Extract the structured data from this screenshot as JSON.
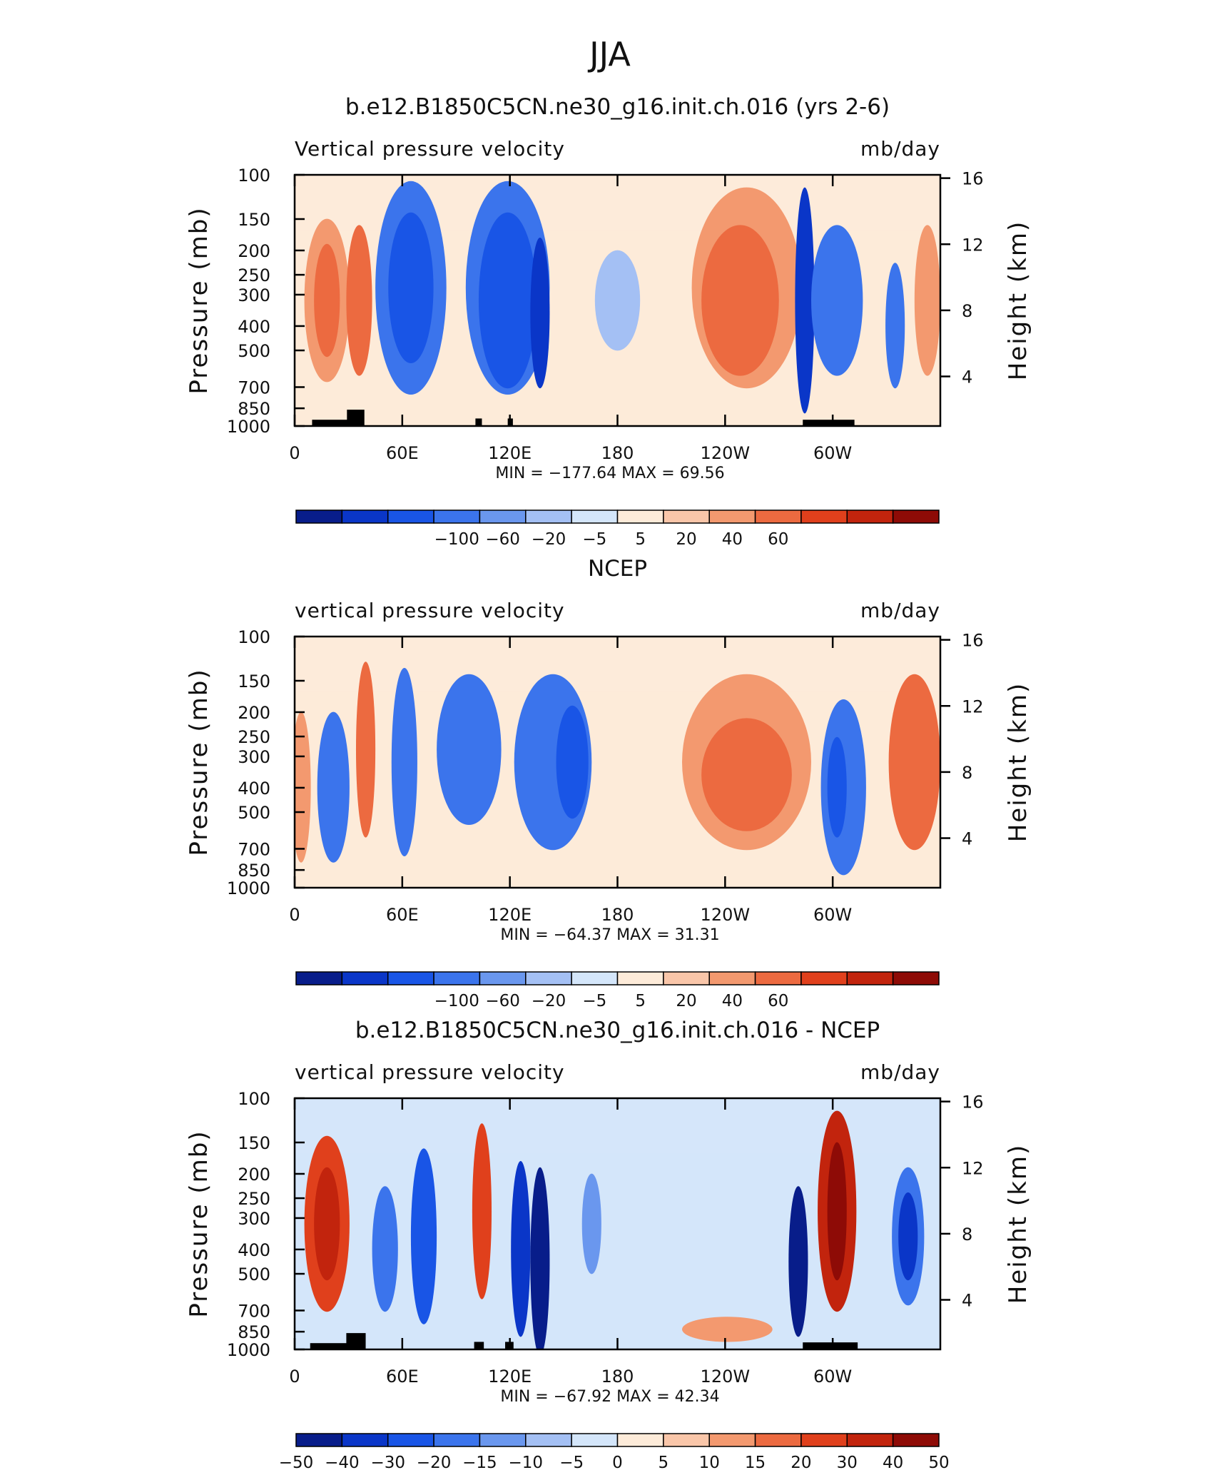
{
  "figure": {
    "title": "JJA"
  },
  "chart_data": [
    {
      "type": "heatmap",
      "title": "b.e12.B1850C5CN.ne30_g16.init.ch.016 (yrs 2-6)",
      "left_label": "Vertical pressure velocity",
      "right_label": "mb/day",
      "ylabel": "Pressure (mb)",
      "ylabel_right": "Height (km)",
      "x_ticks": [
        "0",
        "60E",
        "120E",
        "180",
        "120W",
        "60W"
      ],
      "y_ticks": [
        "100",
        "150",
        "200",
        "250",
        "300",
        "400",
        "500",
        "700",
        "850",
        "1000"
      ],
      "y_ticks_right": [
        "16",
        "12",
        "8",
        "4"
      ],
      "min_max": "MIN = −177.64   MAX =   69.56",
      "min": -177.64,
      "max": 69.56,
      "colorbar_ticks": [
        "−100",
        "−60",
        "−20",
        "−5",
        "5",
        "20",
        "40",
        "60"
      ]
    },
    {
      "type": "heatmap",
      "title": "NCEP",
      "left_label": "vertical pressure velocity",
      "right_label": "mb/day",
      "ylabel": "Pressure (mb)",
      "ylabel_right": "Height (km)",
      "x_ticks": [
        "0",
        "60E",
        "120E",
        "180",
        "120W",
        "60W"
      ],
      "y_ticks": [
        "100",
        "150",
        "200",
        "250",
        "300",
        "400",
        "500",
        "700",
        "850",
        "1000"
      ],
      "y_ticks_right": [
        "16",
        "12",
        "8",
        "4"
      ],
      "min_max": "MIN = −64.37   MAX =   31.31",
      "min": -64.37,
      "max": 31.31,
      "colorbar_ticks": [
        "−100",
        "−60",
        "−20",
        "−5",
        "5",
        "20",
        "40",
        "60"
      ]
    },
    {
      "type": "heatmap",
      "title": "b.e12.B1850C5CN.ne30_g16.init.ch.016 - NCEP",
      "left_label": "vertical pressure velocity",
      "right_label": "mb/day",
      "ylabel": "Pressure (mb)",
      "ylabel_right": "Height (km)",
      "x_ticks": [
        "0",
        "60E",
        "120E",
        "180",
        "120W",
        "60W"
      ],
      "y_ticks": [
        "100",
        "150",
        "200",
        "250",
        "300",
        "400",
        "500",
        "700",
        "850",
        "1000"
      ],
      "y_ticks_right": [
        "16",
        "12",
        "8",
        "4"
      ],
      "min_max": "MIN = −67.92   MAX =   42.34",
      "min": -67.92,
      "max": 42.34,
      "colorbar_ticks": [
        "−50",
        "−40",
        "−30",
        "−20",
        "−15",
        "−10",
        "−5",
        "0",
        "5",
        "10",
        "15",
        "20",
        "30",
        "40",
        "50"
      ]
    }
  ],
  "colorbar_colors": [
    "#081d8a",
    "#0a36c8",
    "#1955e6",
    "#3b74ec",
    "#6a97ee",
    "#a4c0f4",
    "#d4e6fa",
    "#fdebd9",
    "#f9c6a9",
    "#f3996f",
    "#ec6a40",
    "#e0401c",
    "#c2240d",
    "#8e0b06"
  ]
}
